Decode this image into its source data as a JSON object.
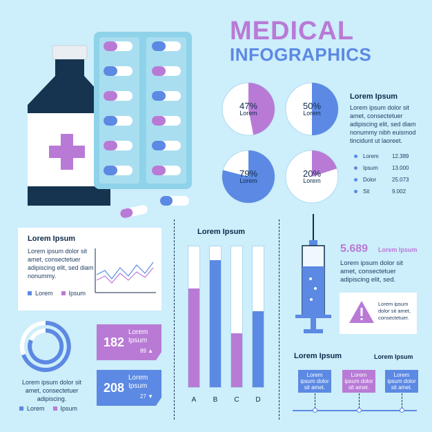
{
  "header": {
    "line1": "MEDICAL",
    "line2": "INFOGRAPHICS"
  },
  "pies": [
    {
      "value": "47%",
      "label": "Lorem",
      "fraction": 0.47,
      "color": "#b97ad6"
    },
    {
      "value": "50%",
      "label": "Lorem",
      "fraction": 0.5,
      "color": "#5b89e3"
    },
    {
      "value": "79%",
      "label": "Lorem",
      "fraction": 0.79,
      "color": "#5b89e3"
    },
    {
      "value": "20%",
      "label": "Lorem",
      "fraction": 0.2,
      "color": "#b97ad6"
    }
  ],
  "info_panel": {
    "heading": "Lorem Ipsum",
    "text": "Lorem ipsum dolor sit amet, consectetuer adipiscing elit, sed diam nonummy nibh euismod tincidunt ut laoreet.",
    "stats": [
      {
        "name": "Lorem",
        "value": "12.389"
      },
      {
        "name": "Ipsum",
        "value": "13.000"
      },
      {
        "name": "Dolor",
        "value": "25.073"
      },
      {
        "name": "Sit",
        "value": "9.002"
      }
    ]
  },
  "line_card": {
    "heading": "Lorem Ipsum",
    "text": "Lorem ipsum dolor sit amet, consectetuer adipiscing elit, sed diam nonummy.",
    "legend": [
      "Lorem",
      "Ipsum"
    ]
  },
  "bar_chart": {
    "heading": "Lorem Ipsum",
    "chart_data": {
      "type": "bar",
      "categories": [
        "A",
        "B",
        "C",
        "D"
      ],
      "values": [
        0.7,
        0.9,
        0.38,
        0.54
      ],
      "colors": [
        "#b97ad6",
        "#5b89e3",
        "#b97ad6",
        "#5b89e3"
      ]
    }
  },
  "stat_boxes": [
    {
      "big": "182",
      "label": "Lorem Ipsum",
      "sub": "89 ▲",
      "color": "#b97ad6"
    },
    {
      "big": "208",
      "label": "Lorem Ipsum",
      "sub": "27 ▼",
      "color": "#5b89e3"
    }
  ],
  "ring": {
    "text": "Lorem ipsum dolor sit amet, consectetuer adipiscing.",
    "legend": [
      "Lorem",
      "Ipsum"
    ]
  },
  "syringe": {
    "value": "5.689",
    "value_label": "Lorem Ipsum",
    "text": "Lorem ipsum dolor sit amet, consectetuer adipiscing elit, sed.",
    "warning_text": "Lorem ipsum dolor sit amet, consectetuer."
  },
  "timeline": {
    "heading": "Lorem Ipsum",
    "heading2": "Lorem Ipsum",
    "boxes": [
      "Lorem ipsum dolor sit amet.",
      "Lorem ipsum dolor sit amet.",
      "Lorem ipsum dolor sit amet."
    ]
  },
  "colors": {
    "background": "#cdeefb",
    "purple": "#b97ad6",
    "blue": "#5b89e3",
    "dark": "#0f2a4a"
  }
}
